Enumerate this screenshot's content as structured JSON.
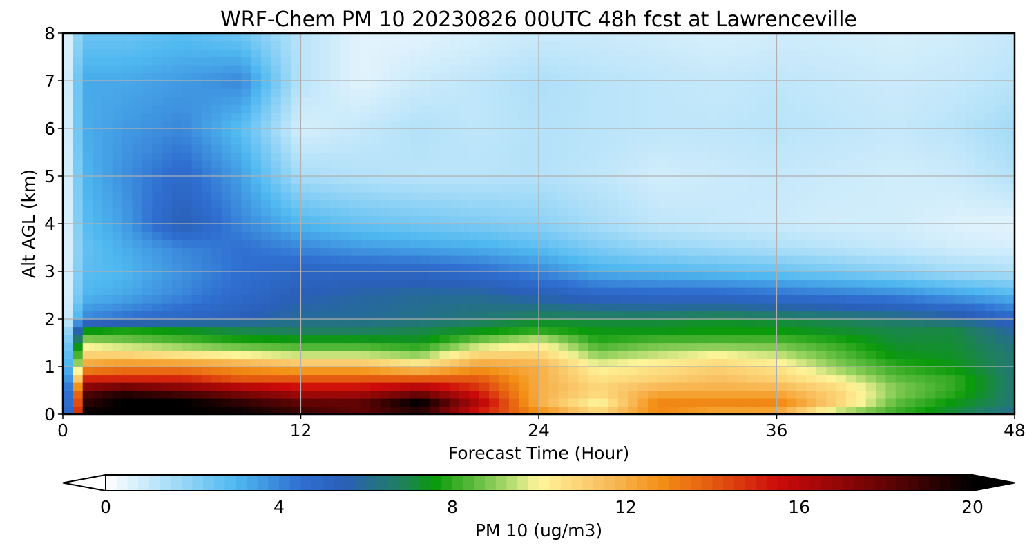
{
  "chart_data": {
    "type": "heatmap",
    "title": "WRF-Chem PM 10  20230826 00UTC 48h fcst at Lawrenceville",
    "xlabel": "Forecast Time (Hour)",
    "ylabel": "Alt AGL (km)",
    "xlim": [
      0,
      48
    ],
    "ylim": [
      0,
      8
    ],
    "x_ticks": [
      "0",
      "12",
      "24",
      "36",
      "48"
    ],
    "y_ticks": [
      "0",
      "1",
      "2",
      "3",
      "4",
      "5",
      "6",
      "7",
      "8"
    ],
    "x_tick_values": [
      0,
      12,
      24,
      36,
      48
    ],
    "y_tick_values": [
      0,
      1,
      2,
      3,
      4,
      5,
      6,
      7,
      8
    ],
    "grid": true,
    "x": [
      0,
      1,
      3,
      6,
      9,
      12,
      15,
      18,
      21,
      24,
      27,
      30,
      33,
      36,
      39,
      42,
      45,
      48
    ],
    "y": [
      0,
      0.25,
      0.5,
      0.75,
      1,
      1.25,
      1.5,
      1.75,
      2,
      2.5,
      3,
      3.5,
      4,
      5,
      6,
      7,
      8
    ],
    "z": [
      [
        0,
        20,
        20,
        20,
        20,
        19,
        18,
        19,
        15,
        13,
        11,
        13,
        12,
        12,
        9,
        8,
        7,
        6
      ],
      [
        0,
        19,
        20,
        20,
        19,
        18,
        18,
        20,
        16,
        12,
        10,
        13,
        13,
        13,
        11,
        8.5,
        7.5,
        6.5
      ],
      [
        0,
        18,
        19,
        18,
        17,
        16,
        16,
        17,
        15,
        12,
        11,
        12,
        12,
        12,
        11,
        9,
        8,
        6.5
      ],
      [
        0,
        15,
        15,
        15,
        14,
        14,
        14,
        14,
        14,
        12,
        10.5,
        11,
        11.5,
        11,
        10,
        8.5,
        8,
        6.5
      ],
      [
        0,
        12.5,
        13,
        13,
        12.5,
        12,
        12,
        11,
        12.5,
        12,
        10,
        10.5,
        11,
        10.5,
        9,
        8,
        7.5,
        6.5
      ],
      [
        0,
        11,
        11,
        10.5,
        10,
        9.5,
        9.5,
        9,
        11,
        11,
        9,
        9.5,
        10,
        9.5,
        8.5,
        7.5,
        7.3,
        6.5
      ],
      [
        0,
        9.5,
        9,
        8.5,
        8,
        7.8,
        7.8,
        7.5,
        9,
        10,
        8,
        8.5,
        8.5,
        8.5,
        8,
        7.2,
        7.2,
        6.3
      ],
      [
        0,
        7.5,
        7.8,
        7.5,
        7,
        6.8,
        6.8,
        7,
        7.5,
        8,
        7.5,
        7.5,
        7.6,
        7.6,
        7.3,
        7,
        7.1,
        5.8
      ],
      [
        0,
        4,
        4.5,
        5,
        5.5,
        6,
        6,
        6.2,
        6.5,
        7,
        7,
        7,
        7.2,
        7,
        6.8,
        6.5,
        6,
        5
      ],
      [
        0,
        3,
        3.3,
        4,
        4.8,
        5.5,
        5.8,
        6,
        6,
        5.5,
        5,
        4.8,
        4.8,
        4.5,
        4.3,
        4,
        3.5,
        3
      ],
      [
        0,
        2.8,
        3,
        3.8,
        4.5,
        5,
        5,
        5,
        4.6,
        4,
        3.2,
        3,
        2.8,
        2.6,
        2.3,
        2,
        1.6,
        1.4
      ],
      [
        0,
        2.6,
        3.2,
        4,
        4.5,
        4,
        3.6,
        3.4,
        3.2,
        2.8,
        2.2,
        1.8,
        1.6,
        1.4,
        1.2,
        1,
        0.8,
        0.7
      ],
      [
        0,
        2.8,
        3.5,
        5.5,
        4,
        3,
        2.6,
        2.4,
        2.2,
        2,
        1.5,
        1.1,
        1,
        0.9,
        0.8,
        0.8,
        0.6,
        0.5
      ],
      [
        0,
        3,
        3.8,
        4.8,
        3.5,
        1.5,
        1.3,
        1.2,
        1.2,
        1.3,
        1.1,
        0.8,
        0.9,
        1,
        0.9,
        0.8,
        0.9,
        1.3
      ],
      [
        0,
        3.2,
        3.6,
        4,
        2.8,
        0.7,
        1,
        1.3,
        1.1,
        1.3,
        1.2,
        1.1,
        1.1,
        1.2,
        1.1,
        1,
        1.2,
        1.6
      ],
      [
        0,
        3.3,
        3.3,
        3.6,
        4,
        1.2,
        0.5,
        0.9,
        1.1,
        1.4,
        1.2,
        1.1,
        1,
        1.1,
        1,
        0.9,
        1,
        1.2
      ],
      [
        0,
        2.5,
        2.5,
        2.8,
        2.4,
        1.2,
        0.5,
        0.5,
        0.7,
        0.9,
        0.9,
        0.8,
        0.7,
        0.8,
        0.8,
        0.7,
        0.8,
        1
      ]
    ],
    "colorbar": {
      "label": "PM 10  (ug/m3)",
      "ticks": [
        "0",
        "4",
        "8",
        "12",
        "16",
        "20"
      ],
      "tick_values": [
        0,
        4,
        8,
        12,
        16,
        20
      ],
      "range": [
        0,
        20
      ],
      "extend": "both",
      "orientation": "horizontal",
      "colors": [
        "#ffffff",
        "#a8ddf8",
        "#4fb8f0",
        "#2f6fd0",
        "#2a5fb8",
        "#1f7f60",
        "#0a9a0a",
        "#8ecf5a",
        "#fff59a",
        "#f9c060",
        "#f39015",
        "#e45a10",
        "#cc0a0a",
        "#7a0505",
        "#000000"
      ],
      "color_stops": [
        0,
        1.5,
        3,
        4.5,
        5.5,
        6.8,
        7.6,
        9,
        10,
        11.5,
        12.8,
        14,
        15.5,
        17.5,
        20
      ]
    }
  }
}
